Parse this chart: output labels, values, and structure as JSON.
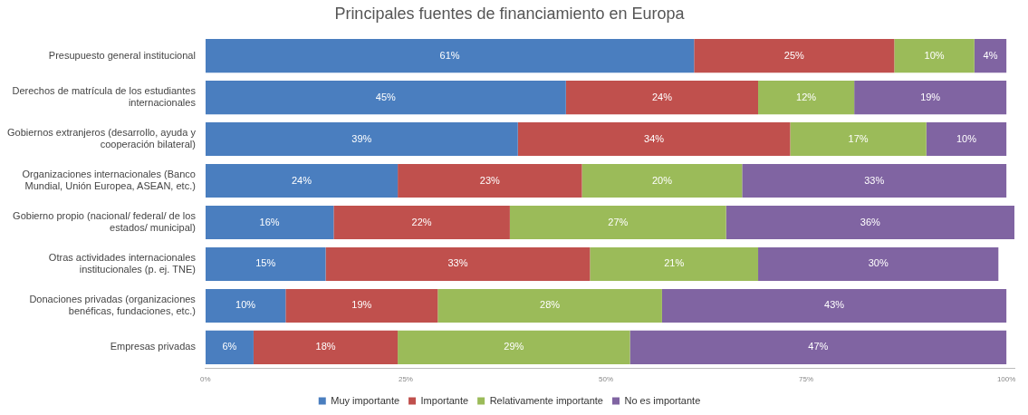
{
  "chart_data": {
    "type": "bar",
    "orientation": "horizontal",
    "stacked": true,
    "title": "Principales fuentes de financiamiento en Europa",
    "categories": [
      "Presupuesto general institucional",
      "Derechos de matrícula de los estudiantes internacionales",
      "Gobiernos extranjeros (desarrollo, ayuda y cooperación bilateral)",
      "Organizaciones internacionales (Banco Mundial, Unión Europea, ASEAN, etc.)",
      "Gobierno propio (nacional/ federal/ de los estados/ municipal)",
      "Otras actividades internacionales institucionales (p. ej. TNE)",
      "Donaciones privadas (organizaciones benéficas, fundaciones, etc.)",
      "Empresas privadas"
    ],
    "series": [
      {
        "name": "Muy importante",
        "color": "#4a7ebf",
        "values": [
          61,
          45,
          39,
          24,
          16,
          15,
          10,
          6
        ],
        "value_labels": [
          "61%",
          "45%",
          "39%",
          "24%",
          "16%",
          "15%",
          "10%",
          "6%"
        ]
      },
      {
        "name": "Importante",
        "color": "#c0504d",
        "values": [
          25,
          24,
          34,
          23,
          22,
          33,
          19,
          18
        ],
        "value_labels": [
          "25%",
          "24%",
          "34%",
          "23%",
          "22%",
          "33%",
          "19%",
          "18%"
        ]
      },
      {
        "name": "Relativamente importante",
        "color": "#9bbb59",
        "values": [
          10,
          12,
          17,
          20,
          27,
          21,
          28,
          29
        ],
        "value_labels": [
          "10%",
          "12%",
          "17%",
          "20%",
          "27%",
          "21%",
          "28%",
          "29%"
        ]
      },
      {
        "name": "No es importante",
        "color": "#8064a2",
        "values": [
          4,
          19,
          10,
          33,
          36,
          30,
          43,
          47
        ],
        "value_labels": [
          "4%",
          "19%",
          "10%",
          "33%",
          "36%",
          "30%",
          "43%",
          "47%"
        ]
      }
    ],
    "xlim": [
      0,
      101
    ],
    "xticks": [
      {
        "value": 0,
        "label": "0%"
      },
      {
        "value": 25,
        "label": "25%"
      },
      {
        "value": 50,
        "label": "50%"
      },
      {
        "value": 75,
        "label": "75%"
      },
      {
        "value": 100,
        "label": "100%"
      }
    ],
    "legend": "bottom",
    "grid": false
  }
}
